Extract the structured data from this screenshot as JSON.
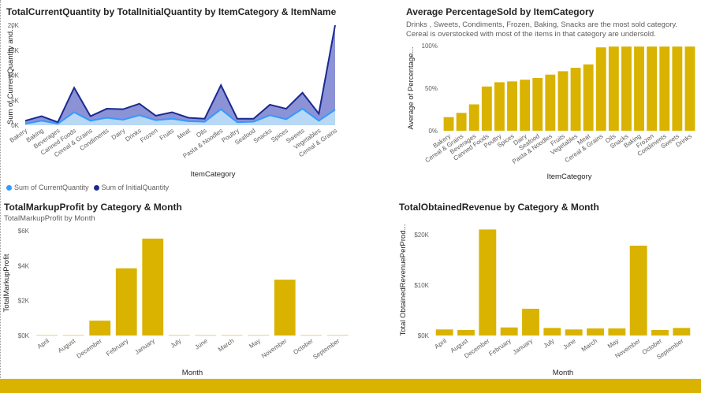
{
  "colors": {
    "bar": "#d9b300",
    "line_current": "#3399ff",
    "line_initial": "#1a2a8f",
    "area_fill": "#8c92d6",
    "axis_text": "#605e5c"
  },
  "chart_data": [
    {
      "type": "area",
      "title": "TotalCurrentQuantity by TotalInitialQuantity by ItemCategory & ItemName",
      "xlabel": "ItemCategory",
      "ylabel": "Sum of CurrentQuantity and...",
      "ylim": [
        0,
        20000
      ],
      "yticks": [
        "0K",
        "5K",
        "10K",
        "15K",
        "20K"
      ],
      "categories": [
        "Bakery",
        "Baking",
        "Beverages",
        "Canned Foods",
        "Cereal & Grains",
        "Condiments",
        "Dairy",
        "Drinks",
        "Frozen",
        "Fruits",
        "Meat",
        "Oils",
        "Pasta & Noodles",
        "Poultry",
        "Seafood",
        "Snacks",
        "Spices",
        "Sweets",
        "Vegetables",
        "Cereal & Grains"
      ],
      "series": [
        {
          "name": "Sum of CurrentQuantity",
          "values": [
            300,
            900,
            300,
            2600,
            900,
            1500,
            1100,
            2000,
            1000,
            1300,
            800,
            700,
            3200,
            600,
            700,
            2000,
            1200,
            3300,
            900,
            3100
          ]
        },
        {
          "name": "Sum of InitialQuantity",
          "values": [
            900,
            1800,
            600,
            7500,
            1800,
            3300,
            3200,
            4300,
            1900,
            2600,
            1500,
            1300,
            8000,
            1300,
            1300,
            4100,
            3300,
            6500,
            2300,
            20000
          ]
        }
      ],
      "legend": "bottom-left"
    },
    {
      "type": "bar",
      "title": "Average PercentageSold by ItemCategory",
      "subtitle": "Drinks , Sweets, Condiments, Frozen, Baking, Snacks are the most sold category. Cereal is overstocked with most of the items in that category are undersold.",
      "xlabel": "ItemCategory",
      "ylabel": "Average of Percentage...",
      "ylim": [
        0,
        100
      ],
      "yticks": [
        "0%",
        "50%",
        "100%"
      ],
      "categories": [
        "Bakery",
        "Cereal & Grains",
        "Beverages",
        "Canned Foods",
        "Poultry",
        "Spices",
        "Dairy",
        "Seafood",
        "Pasta & Noodles",
        "Fruits",
        "Vegetables",
        "Meat",
        "Cereal & Grains",
        "Oils",
        "Snacks",
        "Baking",
        "Frozen",
        "Condiments",
        "Sweets",
        "Drinks"
      ],
      "values": [
        16,
        21,
        31,
        52,
        57,
        58,
        60,
        62,
        66,
        70,
        74,
        78,
        98,
        99,
        99,
        99,
        99,
        99,
        99,
        99
      ]
    },
    {
      "type": "bar",
      "title": "TotalMarkupProfit by Category & Month",
      "subtitle": "TotalMarkupProfit by Month",
      "xlabel": "Month",
      "ylabel": "TotalMarkupProfit",
      "ylim": [
        0,
        6000
      ],
      "yticks": [
        "$0K",
        "$2K",
        "$4K",
        "$6K"
      ],
      "categories": [
        "April",
        "August",
        "December",
        "February",
        "January",
        "July",
        "June",
        "March",
        "May",
        "November",
        "October",
        "September"
      ],
      "values": [
        20,
        20,
        850,
        3850,
        5550,
        20,
        20,
        20,
        20,
        3200,
        20,
        20
      ]
    },
    {
      "type": "bar",
      "title": "TotalObtainedRevenue by Category & Month",
      "xlabel": "Month",
      "ylabel": "Total ObtainedRevenuePerProd...",
      "ylim": [
        0,
        22000
      ],
      "yticks": [
        "$0K",
        "$10K",
        "$20K"
      ],
      "categories": [
        "April",
        "August",
        "December",
        "February",
        "January",
        "July",
        "June",
        "March",
        "May",
        "November",
        "October",
        "September"
      ],
      "values": [
        1200,
        1100,
        21000,
        1600,
        5300,
        1500,
        1200,
        1400,
        1400,
        17800,
        1100,
        1500
      ]
    }
  ]
}
